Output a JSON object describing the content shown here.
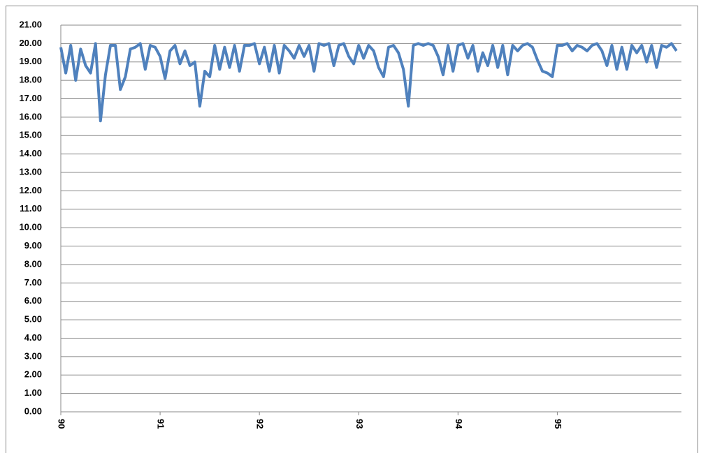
{
  "chart_data": {
    "type": "line",
    "x": [
      90.0,
      90.05,
      90.1,
      90.15,
      90.2,
      90.25,
      90.3,
      90.35,
      90.4,
      90.45,
      90.5,
      90.55,
      90.6,
      90.65,
      90.7,
      90.75,
      90.8,
      90.85,
      90.9,
      90.95,
      91.0,
      91.05,
      91.1,
      91.15,
      91.2,
      91.25,
      91.3,
      91.35,
      91.4,
      91.45,
      91.5,
      91.55,
      91.6,
      91.65,
      91.7,
      91.75,
      91.8,
      91.85,
      91.9,
      91.95,
      92.0,
      92.05,
      92.1,
      92.15,
      92.2,
      92.25,
      92.3,
      92.35,
      92.4,
      92.45,
      92.5,
      92.55,
      92.6,
      92.65,
      92.7,
      92.75,
      92.8,
      92.85,
      92.9,
      92.95,
      93.0,
      93.05,
      93.1,
      93.15,
      93.2,
      93.25,
      93.3,
      93.35,
      93.4,
      93.45,
      93.5,
      93.55,
      93.6,
      93.65,
      93.7,
      93.75,
      93.8,
      93.85,
      93.9,
      93.95,
      94.0,
      94.05,
      94.1,
      94.15,
      94.2,
      94.25,
      94.3,
      94.35,
      94.4,
      94.45,
      94.5,
      94.55,
      94.6,
      94.65,
      94.7,
      94.75,
      94.8,
      94.85,
      94.9,
      94.95,
      95.0,
      95.05,
      95.1,
      95.15,
      95.2,
      95.25,
      95.3,
      95.35,
      95.4,
      95.45,
      95.5,
      95.55,
      95.6,
      95.65,
      95.7,
      95.75,
      95.8,
      95.85,
      95.9,
      95.95,
      96.0,
      96.05,
      96.1,
      96.15,
      96.2
    ],
    "series": [
      {
        "color": "#4f81bd",
        "values": [
          19.8,
          18.4,
          19.9,
          18.0,
          19.7,
          18.8,
          18.4,
          20.0,
          15.8,
          18.3,
          19.9,
          19.9,
          17.5,
          18.2,
          19.7,
          19.8,
          20.0,
          18.6,
          19.9,
          19.8,
          19.3,
          18.1,
          19.6,
          19.9,
          18.9,
          19.6,
          18.8,
          19.0,
          16.6,
          18.5,
          18.2,
          19.9,
          18.6,
          19.8,
          18.7,
          19.9,
          18.5,
          19.9,
          19.9,
          20.0,
          18.9,
          19.8,
          18.5,
          19.9,
          18.4,
          19.9,
          19.6,
          19.2,
          19.9,
          19.3,
          19.9,
          18.5,
          20.0,
          19.9,
          20.0,
          18.8,
          19.9,
          20.0,
          19.3,
          18.9,
          19.9,
          19.2,
          19.9,
          19.6,
          18.7,
          18.2,
          19.8,
          19.9,
          19.5,
          18.6,
          16.6,
          19.9,
          20.0,
          19.9,
          20.0,
          19.9,
          19.3,
          18.3,
          19.9,
          18.5,
          19.9,
          20.0,
          19.2,
          19.9,
          18.5,
          19.5,
          18.8,
          19.9,
          18.7,
          19.9,
          18.3,
          19.9,
          19.6,
          19.9,
          20.0,
          19.8,
          19.1,
          18.5,
          18.4,
          18.2,
          19.9,
          19.9,
          20.0,
          19.6,
          19.9,
          19.8,
          19.6,
          19.9,
          20.0,
          19.6,
          18.8,
          19.9,
          18.6,
          19.8,
          18.6,
          19.9,
          19.5,
          19.9,
          19.0,
          19.9,
          18.7,
          19.9,
          19.8,
          20.0,
          19.6
        ]
      }
    ],
    "xlim": [
      90,
      96.25
    ],
    "xticks": [
      90,
      91,
      92,
      93,
      94,
      95
    ],
    "ylim": [
      0,
      21
    ],
    "yticks": [
      {
        "value": 0,
        "label": "0.00"
      },
      {
        "value": 1,
        "label": "1.00"
      },
      {
        "value": 2,
        "label": "2.00"
      },
      {
        "value": 3,
        "label": "3.00"
      },
      {
        "value": 4,
        "label": "4.00"
      },
      {
        "value": 5,
        "label": "5.00"
      },
      {
        "value": 6,
        "label": "6.00"
      },
      {
        "value": 7,
        "label": "7.00"
      },
      {
        "value": 8,
        "label": "8.00"
      },
      {
        "value": 9,
        "label": "9.00"
      },
      {
        "value": 10,
        "label": "10.00"
      },
      {
        "value": 11,
        "label": "11.00"
      },
      {
        "value": 12,
        "label": "12.00"
      },
      {
        "value": 13,
        "label": "13.00"
      },
      {
        "value": 14,
        "label": "14.00"
      },
      {
        "value": 15,
        "label": "15.00"
      },
      {
        "value": 16,
        "label": "16.00"
      },
      {
        "value": 17,
        "label": "17.00"
      },
      {
        "value": 18,
        "label": "18.00"
      },
      {
        "value": 19,
        "label": "19.00"
      },
      {
        "value": 20,
        "label": "20.00"
      },
      {
        "value": 21,
        "label": "21.00"
      }
    ],
    "grid": true
  }
}
